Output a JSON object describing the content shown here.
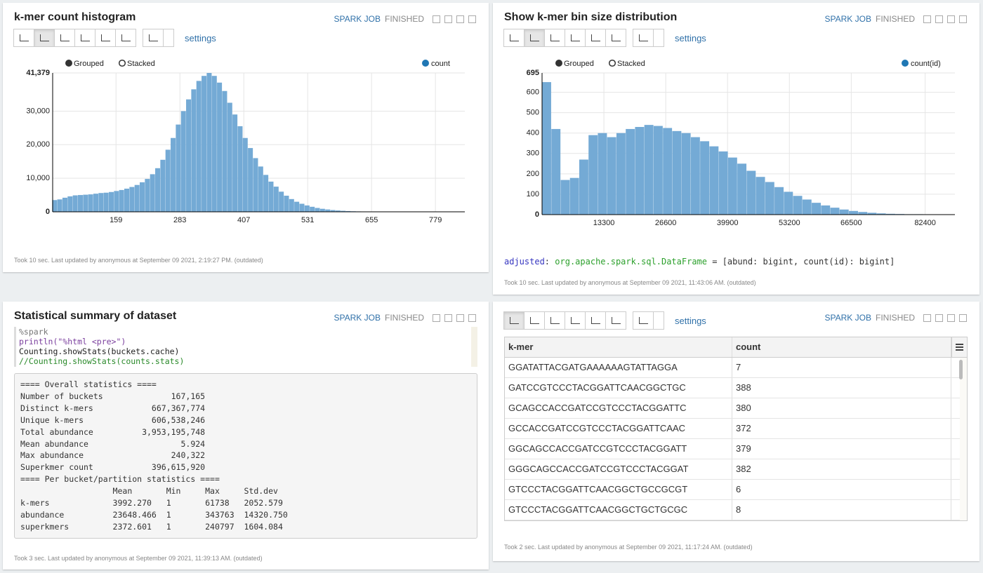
{
  "chart_data": [
    {
      "type": "histogram",
      "modes": [
        "Grouped",
        "Stacked"
      ],
      "legend_color": "#1f77b4",
      "bins": [
        35,
        45,
        55,
        65,
        75,
        85,
        95,
        105,
        115,
        125,
        135,
        145,
        155,
        165,
        175,
        185,
        195,
        205,
        215,
        225,
        235,
        245,
        255,
        265,
        275,
        285,
        295,
        305,
        315,
        325,
        335,
        345,
        355,
        365,
        375,
        385,
        395,
        405,
        415,
        425,
        435,
        445,
        455,
        465,
        475,
        485,
        495,
        505,
        515,
        525,
        535,
        545,
        555,
        565,
        575,
        585,
        595,
        605,
        615,
        625,
        635,
        645,
        655,
        665,
        675,
        685,
        695,
        705,
        715,
        725,
        735,
        745,
        755,
        765,
        775,
        785,
        795,
        805,
        815,
        825,
        835
      ],
      "series": [
        {
          "name": "count",
          "color": "#74aad5",
          "values": [
            3500,
            3700,
            4200,
            4600,
            4900,
            5000,
            5100,
            5200,
            5400,
            5600,
            5700,
            5900,
            6200,
            6500,
            6900,
            7400,
            8000,
            8800,
            9800,
            11200,
            13000,
            15500,
            18500,
            22000,
            26000,
            30000,
            33500,
            36500,
            39000,
            40500,
            41379,
            40500,
            38500,
            36000,
            32500,
            29000,
            25500,
            22000,
            19000,
            16000,
            13500,
            11000,
            9000,
            7500,
            6000,
            4800,
            3800,
            3000,
            2400,
            1900,
            1500,
            1150,
            900,
            700,
            520,
            400,
            300,
            220,
            160,
            120,
            90,
            70,
            50,
            40,
            30,
            22,
            16,
            12,
            9,
            7,
            5,
            4,
            3,
            2,
            2,
            1,
            1,
            1,
            1,
            0
          ]
        }
      ],
      "xlim": [
        36,
        836
      ],
      "xticks": [
        159,
        283,
        407,
        531,
        655,
        779
      ],
      "ylim": [
        0,
        41379
      ],
      "yticks": [
        0,
        {
          "value": 10000,
          "label": "10,000"
        },
        {
          "value": 20000,
          "label": "20,000"
        },
        {
          "value": 30000,
          "label": "30,000"
        },
        {
          "value": 41379,
          "label": "41,379"
        }
      ],
      "grid": true
    },
    {
      "type": "histogram",
      "modes": [
        "Grouped",
        "Stacked"
      ],
      "legend_color": "#1f77b4",
      "bins": [
        0,
        2000,
        4000,
        6000,
        8000,
        10000,
        12000,
        14000,
        16000,
        18000,
        20000,
        22000,
        24000,
        26000,
        28000,
        30000,
        32000,
        34000,
        36000,
        38000,
        40000,
        42000,
        44000,
        46000,
        48000,
        50000,
        52000,
        54000,
        56000,
        58000,
        60000,
        62000,
        64000,
        66000,
        68000,
        70000,
        72000,
        74000,
        76000,
        78000,
        80000,
        82000,
        84000,
        86000,
        88000
      ],
      "series": [
        {
          "name": "count(id)",
          "color": "#74aad5",
          "values": [
            650,
            420,
            170,
            180,
            270,
            390,
            400,
            380,
            400,
            420,
            430,
            440,
            435,
            425,
            410,
            400,
            380,
            360,
            335,
            310,
            280,
            250,
            215,
            185,
            160,
            135,
            112,
            92,
            74,
            58,
            45,
            34,
            25,
            18,
            13,
            9,
            6,
            4,
            3,
            2,
            2,
            1,
            1,
            1
          ]
        }
      ],
      "xlim": [
        0,
        88800
      ],
      "xticks": [
        13300,
        26600,
        39900,
        53200,
        66500,
        82400
      ],
      "ylim": [
        0,
        695
      ],
      "yticks": [
        0,
        100,
        200,
        300,
        400,
        500,
        600,
        695
      ],
      "grid": true
    }
  ],
  "paragraphs": [
    {
      "title": "k-mer count histogram",
      "job": "SPARK JOB",
      "state": "FINISHED",
      "settings": "settings",
      "footer": "Took 10 sec. Last updated by anonymous at September 09 2021, 2:19:27 PM. (outdated)"
    },
    {
      "title": "Show k-mer bin size distribution",
      "job": "SPARK JOB",
      "state": "FINISHED",
      "settings": "settings",
      "output": {
        "name": "adjusted",
        "separator": ":",
        "type": "org.apache.spark.sql.DataFrame",
        "value": "= [abund: bigint, count(id): bigint]"
      },
      "footer": "Took 10 sec. Last updated by anonymous at September 09 2021, 11:43:06 AM. (outdated)"
    },
    {
      "title": "Statistical summary of dataset",
      "job": "SPARK JOB",
      "state": "FINISHED",
      "code": [
        "%spark",
        "println(\"%html <pre>\")",
        "Counting.showStats(buckets.cache)",
        "//Counting.showStats(counts.stats)"
      ],
      "output": [
        "==== Overall statistics ====",
        "Number of buckets              167,165",
        "Distinct k-mers            667,367,774",
        "Unique k-mers              606,538,246",
        "Total abundance          3,953,195,748",
        "Mean abundance                   5.924",
        "Max abundance                  240,322",
        "Superkmer count            396,615,920",
        "==== Per bucket/partition statistics ====",
        "                   Mean       Min     Max     Std.dev",
        "k-mers             3992.270   1       61738   2052.579",
        "abundance          23648.466  1       343763  14320.750",
        "superkmers         2372.601   1       240797  1604.084"
      ],
      "footer": "Took 3 sec. Last updated by anonymous at September 09 2021, 11:39:13 AM. (outdated)"
    },
    {
      "job": "SPARK JOB",
      "state": "FINISHED",
      "settings": "settings",
      "table": {
        "headers": [
          "k-mer",
          "count"
        ],
        "rows": [
          [
            "GGATATTACGATGAAAAAAGTATTAGGA",
            "7"
          ],
          [
            "GATCCGTCCCTACGGATTCAACGGCTGC",
            "388"
          ],
          [
            "GCAGCCACCGATCCGTCCCTACGGATTC",
            "380"
          ],
          [
            "GCCACCGATCCGTCCCTACGGATTCAAC",
            "372"
          ],
          [
            "GGCAGCCACCGATCCGTCCCTACGGATT",
            "379"
          ],
          [
            "GGGCAGCCACCGATCCGTCCCTACGGAT",
            "382"
          ],
          [
            "GTCCCTACGGATTCAACGGCTGCCGCGT",
            "6"
          ],
          [
            "GTCCCTACGGATTCAACGGCTGCTGCGC",
            "8"
          ]
        ]
      },
      "footer": "Took 2 sec. Last updated by anonymous at September 09 2021, 11:17:24 AM. (outdated)"
    }
  ]
}
